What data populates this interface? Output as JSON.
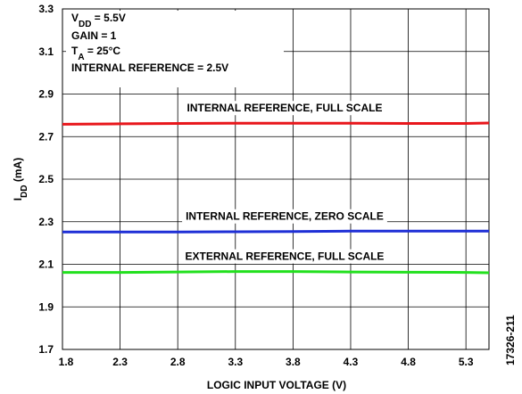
{
  "chart_data": {
    "type": "line",
    "xlabel": "LOGIC INPUT VOLTAGE (V)",
    "ylabel": [
      "I",
      "DD",
      " (mA)"
    ],
    "conditions": [
      [
        "V",
        "DD",
        " = 5.5V"
      ],
      [
        "GAIN = 1"
      ],
      [
        "T",
        "A",
        " = 25°C"
      ],
      [
        "INTERNAL REFERENCE = 2.5V"
      ]
    ],
    "figure_id": "17326-211",
    "x": [
      1.8,
      2.3,
      2.8,
      3.3,
      3.8,
      4.3,
      4.8,
      5.3,
      5.5
    ],
    "series": [
      {
        "name": "INTERNAL REFERENCE, FULL SCALE",
        "color": "#e8161b",
        "values": [
          2.758,
          2.76,
          2.762,
          2.763,
          2.763,
          2.763,
          2.762,
          2.762,
          2.764
        ]
      },
      {
        "name": "INTERNAL REFERENCE, ZERO SCALE",
        "color": "#1e2fd6",
        "values": [
          2.252,
          2.252,
          2.252,
          2.253,
          2.254,
          2.256,
          2.256,
          2.256,
          2.256
        ]
      },
      {
        "name": "EXTERNAL REFERENCE, FULL SCALE",
        "color": "#22e01e",
        "values": [
          2.062,
          2.062,
          2.064,
          2.066,
          2.066,
          2.064,
          2.063,
          2.062,
          2.06
        ]
      }
    ],
    "xlim": [
      1.8,
      5.5
    ],
    "ylim": [
      1.7,
      3.3
    ],
    "xticks": [
      1.8,
      2.3,
      2.8,
      3.3,
      3.8,
      4.3,
      4.8,
      5.3
    ],
    "yticks": [
      1.7,
      1.9,
      2.1,
      2.3,
      2.5,
      2.7,
      2.9,
      3.1,
      3.3
    ],
    "grid": true
  }
}
